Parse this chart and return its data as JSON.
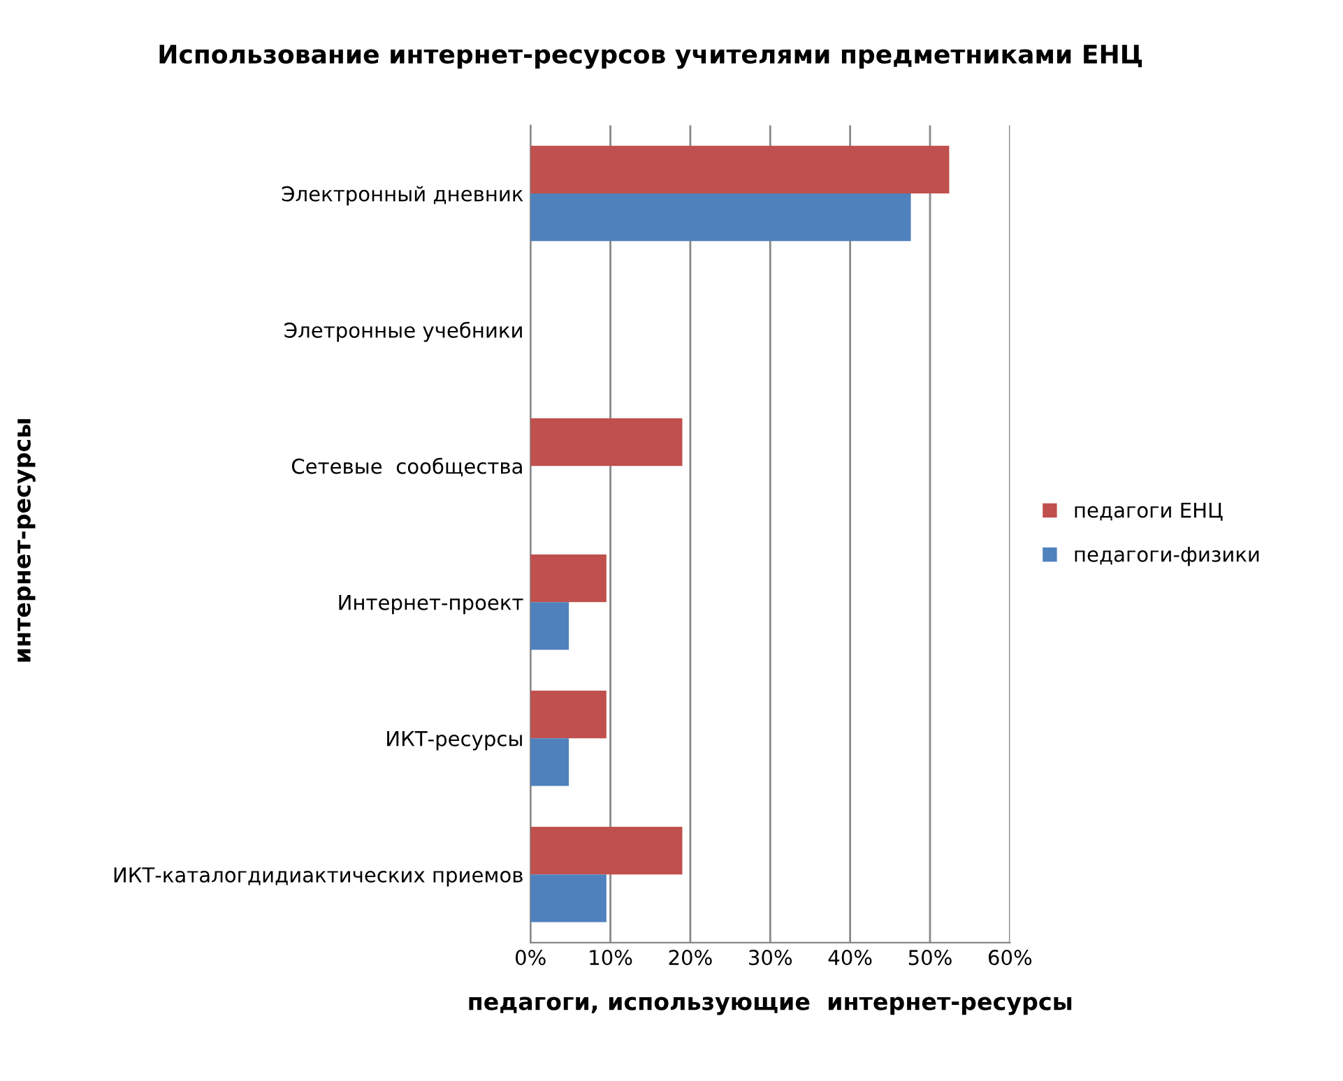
{
  "chart_data": {
    "type": "bar",
    "orientation": "horizontal",
    "title": "Использование интернет-ресурсов учителями предметниками ЕНЦ",
    "xlabel": "педагоги, использующие  интернет-ресурсы",
    "ylabel": "интернет-ресурсы",
    "categories": [
      "Электронный дневник",
      "Элетронные учебники",
      "Сетевые  сообщества",
      "Интернет-проект",
      "ИКТ-ресурсы",
      "ИКТ-каталогдидиактических приемов"
    ],
    "series": [
      {
        "name": "педагоги ЕНЦ",
        "color": "#c0504d",
        "values": [
          52.4,
          0,
          19,
          9.5,
          9.5,
          19
        ]
      },
      {
        "name": "педагоги-физики",
        "color": "#4f81bd",
        "values": [
          47.6,
          0,
          0,
          4.8,
          4.8,
          9.5
        ]
      }
    ],
    "xlim": [
      0,
      60
    ],
    "xticks": [
      {
        "value": 0,
        "label": "0%"
      },
      {
        "value": 10,
        "label": "10%"
      },
      {
        "value": 20,
        "label": "20%"
      },
      {
        "value": 30,
        "label": "30%"
      },
      {
        "value": 40,
        "label": "40%"
      },
      {
        "value": 50,
        "label": "50%"
      },
      {
        "value": 60,
        "label": "60%"
      }
    ],
    "grid": "x",
    "legend": "right"
  }
}
